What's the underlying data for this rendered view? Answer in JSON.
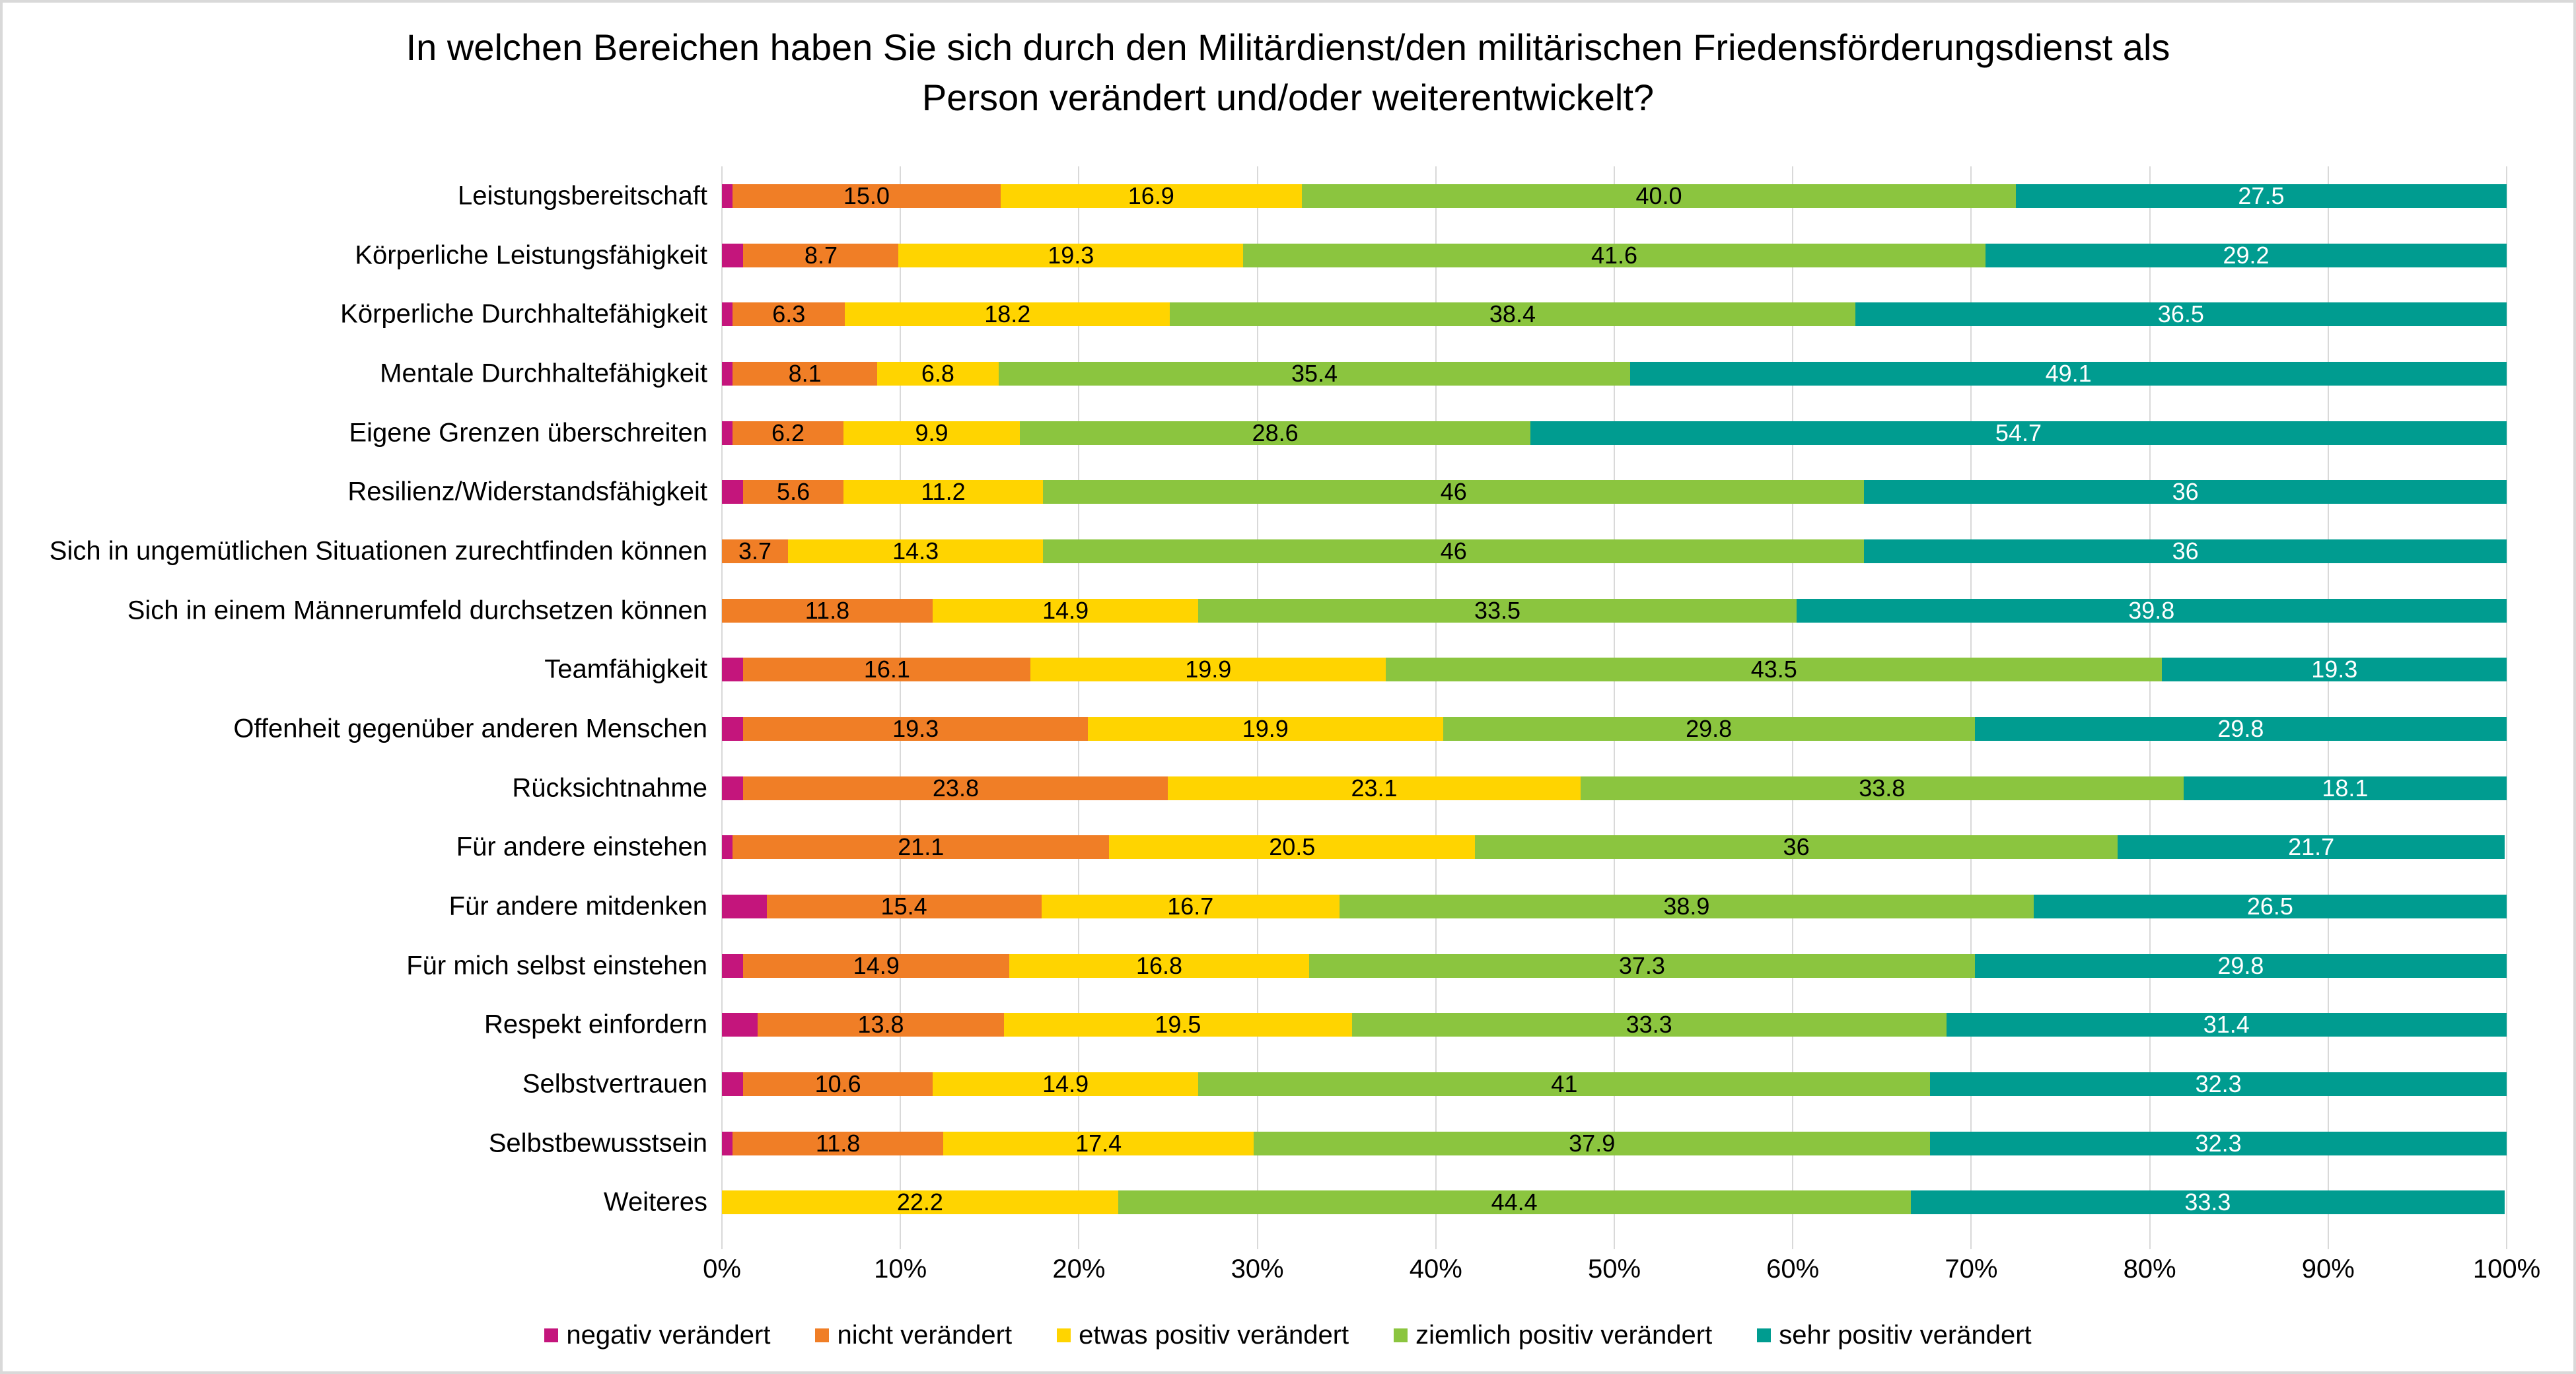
{
  "chart_data": {
    "type": "bar",
    "stacked": true,
    "orientation": "horizontal",
    "title": "In welchen Bereichen haben Sie sich durch den Militärdienst/den militärischen Friedensförderungsdienst als Person verändert und/oder weiterentwickelt?",
    "title_lines": [
      "In welchen Bereichen haben Sie sich durch den Militärdienst/den militärischen Friedensförderungsdienst als",
      "Person verändert und/oder weiterentwickelt?"
    ],
    "categories": [
      "Leistungsbereitschaft",
      "Körperliche Leistungsfähigkeit",
      "Körperliche Durchhaltefähigkeit",
      "Mentale Durchhaltefähigkeit",
      "Eigene Grenzen überschreiten",
      "Resilienz/Widerstandsfähigkeit",
      "Sich in ungemütlichen Situationen zurechtfinden können",
      "Sich in einem Männerumfeld durchsetzen können",
      "Teamfähigkeit",
      "Offenheit gegenüber anderen Menschen",
      "Rücksichtnahme",
      "Für andere einstehen",
      "Für andere mitdenken",
      "Für mich selbst einstehen",
      "Respekt einfordern",
      "Selbstvertrauen",
      "Selbstbewusstsein",
      "Weiteres"
    ],
    "series": [
      {
        "name": "negativ verändert",
        "color": "#C4157C",
        "label_color": "#000000",
        "values": [
          0.6,
          1.2,
          0.6,
          0.6,
          0.6,
          1.2,
          0,
          0,
          1.2,
          1.2,
          1.2,
          0.6,
          2.5,
          1.2,
          2.0,
          1.2,
          0.6,
          0
        ],
        "labels": [
          null,
          null,
          null,
          null,
          null,
          null,
          null,
          null,
          null,
          null,
          null,
          null,
          null,
          null,
          null,
          null,
          null,
          null
        ]
      },
      {
        "name": "nicht verändert",
        "color": "#F07E26",
        "label_color": "#000000",
        "values": [
          15.0,
          8.7,
          6.3,
          8.1,
          6.2,
          5.6,
          3.7,
          11.8,
          16.1,
          19.3,
          23.8,
          21.1,
          15.4,
          14.9,
          13.8,
          10.6,
          11.8,
          0
        ],
        "labels": [
          "15.0",
          "8.7",
          "6.3",
          "8.1",
          "6.2",
          "5.6",
          "3.7",
          "11.8",
          "16.1",
          "19.3",
          "23.8",
          "21.1",
          "15.4",
          "14.9",
          "13.8",
          "10.6",
          "11.8",
          null
        ]
      },
      {
        "name": "etwas positiv verändert",
        "color": "#FFD400",
        "label_color": "#000000",
        "values": [
          16.9,
          19.3,
          18.2,
          6.8,
          9.9,
          11.2,
          14.3,
          14.9,
          19.9,
          19.9,
          23.1,
          20.5,
          16.7,
          16.8,
          19.5,
          14.9,
          17.4,
          22.2
        ],
        "labels": [
          "16.9",
          "19.3",
          "18.2",
          "6.8",
          "9.9",
          "11.2",
          "14.3",
          "14.9",
          "19.9",
          "19.9",
          "23.1",
          "20.5",
          "16.7",
          "16.8",
          "19.5",
          "14.9",
          "17.4",
          "22.2"
        ]
      },
      {
        "name": "ziemlich positiv verändert",
        "color": "#8BC53F",
        "label_color": "#000000",
        "values": [
          40.0,
          41.6,
          38.4,
          35.4,
          28.6,
          46,
          46,
          33.5,
          43.5,
          29.8,
          33.8,
          36,
          38.9,
          37.3,
          33.3,
          41,
          37.9,
          44.4
        ],
        "labels": [
          "40.0",
          "41.6",
          "38.4",
          "35.4",
          "28.6",
          "46",
          "46",
          "33.5",
          "43.5",
          "29.8",
          "33.8",
          "36",
          "38.9",
          "37.3",
          "33.3",
          "41",
          "37.9",
          "44.4"
        ]
      },
      {
        "name": "sehr positiv verändert",
        "color": "#009C90",
        "label_color": "#FFFFFF",
        "values": [
          27.5,
          29.2,
          36.5,
          49.1,
          54.7,
          36,
          36,
          39.8,
          19.3,
          29.8,
          18.1,
          21.7,
          26.5,
          29.8,
          31.4,
          32.3,
          32.3,
          33.3
        ],
        "labels": [
          "27.5",
          "29.2",
          "36.5",
          "49.1",
          "54.7",
          "36",
          "36",
          "39.8",
          "19.3",
          "29.8",
          "18.1",
          "21.7",
          "26.5",
          "29.8",
          "31.4",
          "32.3",
          "32.3",
          "33.3"
        ]
      }
    ],
    "x_ticks": [
      "0%",
      "10%",
      "20%",
      "30%",
      "40%",
      "50%",
      "60%",
      "70%",
      "80%",
      "90%",
      "100%"
    ],
    "xlim": [
      0,
      100
    ],
    "grid": true,
    "gridline_color": "#D9D9D9",
    "legend_position": "bottom"
  }
}
